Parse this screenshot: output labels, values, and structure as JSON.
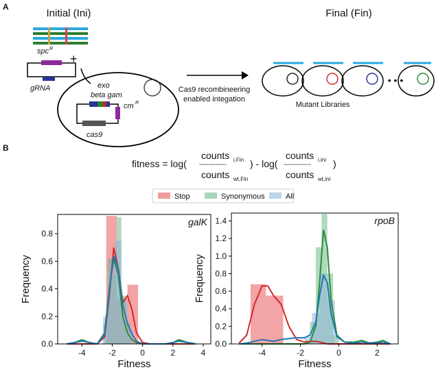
{
  "panel_labels": [
    "A",
    "B"
  ],
  "diagram": {
    "initial_title": "Initial (Ini)",
    "final_title": "Final (Fin)",
    "spc": "spc",
    "spc_sup": "R",
    "plus": "+",
    "grna": "gRNA",
    "exo": "exo",
    "beta_gam": "beta gam",
    "cm": "cm",
    "cm_sup": "R",
    "cas9": "cas9",
    "arrow_label_1": "Cas9 recombineering",
    "arrow_label_2": "enabled integation",
    "ellipsis": "• • •",
    "mutant_label": "Mutant Libraries"
  },
  "formula": {
    "lhs": "fitness = log(",
    "num1": "counts",
    "num1_sub": "i,Fin",
    "den1": "counts",
    "den1_sub": "wt,Fin",
    "dash": "------------",
    "mid": ") - log(",
    "num2": "counts",
    "num2_sub": "i,ini",
    "den2": "counts",
    "den2_sub": "wt,ini",
    "end": ")"
  },
  "chart_data": [
    {
      "type": "histogram",
      "title": "galK",
      "x_label": "Fitness",
      "y_label": "Frequency",
      "xlim": [
        -5.6,
        4.5
      ],
      "xticks": [
        -4,
        -2,
        0,
        2,
        4
      ],
      "ylim": [
        0,
        0.94
      ],
      "yticks": [
        0.0,
        0.2,
        0.4,
        0.6,
        0.8
      ],
      "series": [
        {
          "name": "Stop",
          "color": "#e8595e",
          "line_color": "#d62728",
          "bins": [
            -2.4,
            -1.7,
            -1.0,
            -0.3
          ],
          "values": [
            0.93,
            0.33,
            0.43
          ],
          "kde": {
            "x": [
              -5,
              -4.5,
              -4,
              -3.5,
              -3,
              -2.5,
              -2.2,
              -1.9,
              -1.6,
              -1.3,
              -1,
              -0.7,
              -0.4,
              0,
              0.5,
              1,
              1.5,
              2,
              2.4,
              3,
              3.5
            ],
            "values": [
              0,
              0,
              0,
              0,
              0,
              0.05,
              0.35,
              0.7,
              0.55,
              0.3,
              0.35,
              0.25,
              0.08,
              0.01,
              0,
              0,
              0,
              0,
              0,
              0,
              0
            ]
          }
        },
        {
          "name": "Synonymous",
          "color": "#6dbb8a",
          "line_color": "#2e8b3a",
          "bins": [
            -2.6,
            -2.3,
            -2.0,
            -1.7,
            -1.4,
            -1.1,
            -0.8
          ],
          "values": [
            0.15,
            0.62,
            0.5,
            0.92,
            0.35,
            0.15
          ],
          "kde": {
            "x": [
              -5,
              -4.5,
              -4,
              -3.5,
              -3,
              -2.5,
              -2.2,
              -1.9,
              -1.6,
              -1.3,
              -1,
              -0.7,
              -0.4,
              0,
              0.5,
              1,
              1.5,
              2,
              2.4,
              3,
              3.5
            ],
            "values": [
              0,
              0.01,
              0.03,
              0.01,
              0,
              0.08,
              0.4,
              0.62,
              0.5,
              0.2,
              0.08,
              0.03,
              0.01,
              0,
              0,
              0,
              0,
              0.01,
              0.03,
              0.01,
              0
            ]
          }
        },
        {
          "name": "All",
          "color": "#8fb5d9",
          "line_color": "#1f77b4",
          "bins": [
            -2.6,
            -2.2,
            -1.8,
            -1.4,
            -1.0,
            -0.6
          ],
          "values": [
            0.2,
            0.6,
            0.75,
            0.3,
            0.1
          ],
          "kde": {
            "x": [
              -5,
              -4.5,
              -4,
              -3.5,
              -3,
              -2.5,
              -2.2,
              -1.9,
              -1.6,
              -1.3,
              -1,
              -0.7,
              -0.4,
              0,
              0.5,
              1,
              1.5,
              2,
              2.4,
              3,
              3.5
            ],
            "values": [
              0,
              0.01,
              0.02,
              0.01,
              0,
              0.07,
              0.38,
              0.64,
              0.55,
              0.28,
              0.15,
              0.07,
              0.02,
              0,
              0,
              0,
              0,
              0.01,
              0.02,
              0.01,
              0
            ]
          }
        }
      ]
    },
    {
      "type": "histogram",
      "title": "rpoB",
      "x_label": "Fitness",
      "y_label": "Frequency",
      "xlim": [
        -5.6,
        3.1
      ],
      "xticks": [
        -4,
        -2,
        0,
        2
      ],
      "ylim": [
        0,
        1.49
      ],
      "yticks": [
        0.0,
        0.2,
        0.4,
        0.6,
        0.8,
        1.0,
        1.2,
        1.4
      ],
      "series": [
        {
          "name": "Stop",
          "color": "#e8595e",
          "line_color": "#d62728",
          "bins": [
            -4.6,
            -3.8,
            -2.9
          ],
          "values": [
            0.68,
            0.55
          ],
          "kde": {
            "x": [
              -5.2,
              -4.8,
              -4.4,
              -4,
              -3.7,
              -3.4,
              -3,
              -2.6,
              -2.2,
              -1.8,
              -1.5,
              -1.2,
              -1,
              -0.8,
              -0.6,
              -0.4,
              -0.1,
              0.3,
              0.8,
              1.2,
              1.6,
              2,
              2.3,
              2.7
            ],
            "values": [
              0.01,
              0.1,
              0.45,
              0.66,
              0.66,
              0.55,
              0.45,
              0.2,
              0.05,
              0.02,
              0.03,
              0.03,
              0.02,
              0.01,
              0,
              0,
              0,
              0,
              0,
              0,
              0,
              0,
              0,
              0
            ]
          }
        },
        {
          "name": "Synonymous",
          "color": "#6dbb8a",
          "line_color": "#2e8b3a",
          "bins": [
            -1.5,
            -1.2,
            -0.9,
            -0.6,
            -0.3,
            0
          ],
          "values": [
            0.25,
            1.1,
            1.48,
            0.8,
            0.1
          ],
          "kde": {
            "x": [
              -5.2,
              -4.8,
              -4.4,
              -4,
              -3.7,
              -3.4,
              -3,
              -2.6,
              -2.2,
              -1.8,
              -1.5,
              -1.2,
              -1,
              -0.8,
              -0.6,
              -0.4,
              -0.1,
              0.3,
              0.8,
              1.2,
              1.6,
              2,
              2.3,
              2.7
            ],
            "values": [
              0,
              0,
              0,
              0,
              0,
              0,
              0,
              0,
              0,
              0,
              0.02,
              0.2,
              0.7,
              1.3,
              1.1,
              0.5,
              0.1,
              0.02,
              0.02,
              0.04,
              0.01,
              0.02,
              0.04,
              0
            ]
          }
        },
        {
          "name": "All",
          "color": "#8fb5d9",
          "line_color": "#1f77b4",
          "bins": [
            -1.8,
            -1.4,
            -1.0,
            -0.6,
            -0.2
          ],
          "values": [
            0.08,
            0.35,
            0.8,
            0.5
          ],
          "kde": {
            "x": [
              -5.2,
              -4.8,
              -4.4,
              -4,
              -3.7,
              -3.4,
              -3,
              -2.6,
              -2.2,
              -1.8,
              -1.5,
              -1.2,
              -1,
              -0.8,
              -0.6,
              -0.4,
              -0.1,
              0.3,
              0.8,
              1.2,
              1.6,
              2,
              2.3,
              2.7
            ],
            "values": [
              0,
              0.01,
              0.03,
              0.05,
              0.04,
              0.03,
              0.05,
              0.06,
              0.07,
              0.07,
              0.1,
              0.25,
              0.55,
              0.78,
              0.7,
              0.35,
              0.08,
              0.02,
              0.01,
              0.02,
              0.01,
              0.01,
              0.02,
              0
            ]
          }
        }
      ]
    }
  ]
}
